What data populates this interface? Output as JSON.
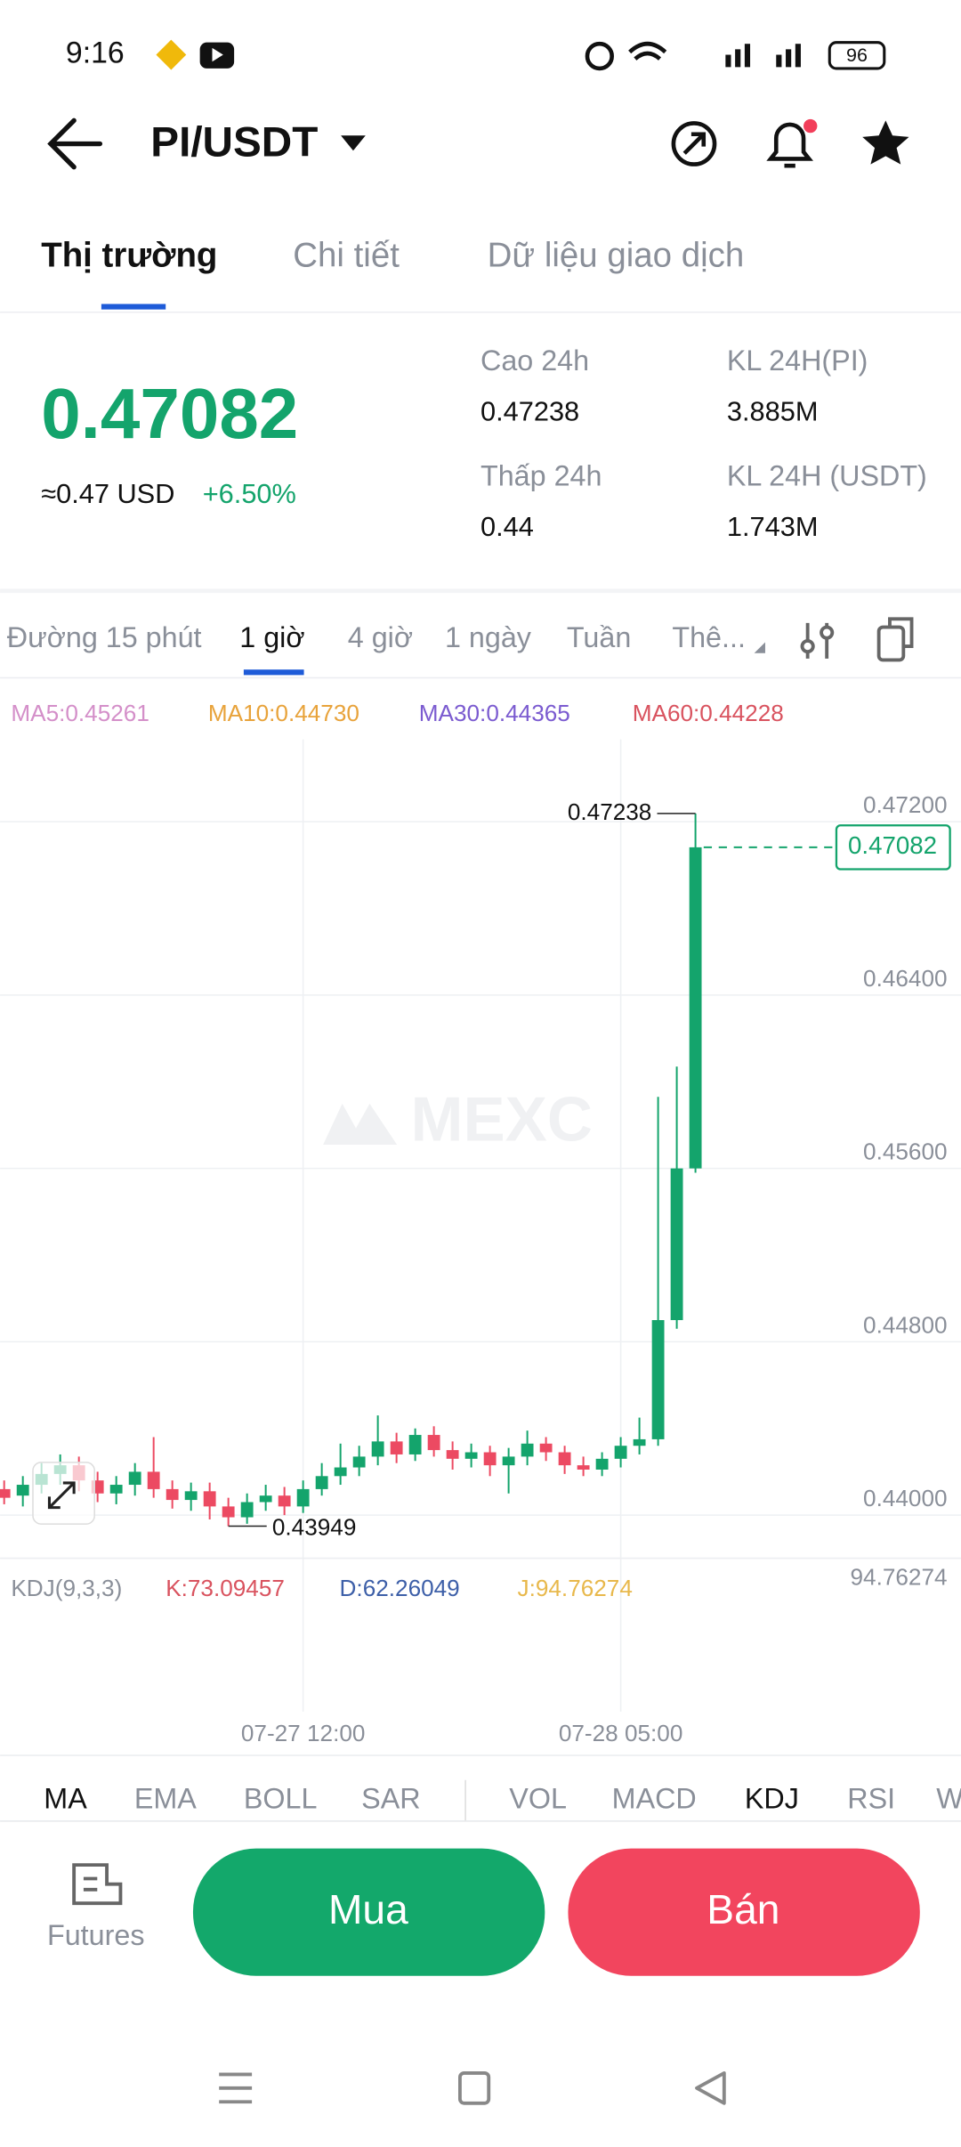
{
  "status_bar": {
    "time": "9:16",
    "battery": "96"
  },
  "header": {
    "pair": "PI/USDT"
  },
  "tabs": [
    "Thị trường",
    "Chi tiết",
    "Dữ liệu giao dịch"
  ],
  "ticker": {
    "price": "0.47082",
    "usd": "≈0.47 USD",
    "change": "+6.50%",
    "high_label": "Cao 24h",
    "high": "0.47238",
    "low_label": "Thấp 24h",
    "low": "0.44",
    "vol_pi_label": "KL 24H(PI)",
    "vol_pi": "3.885M",
    "vol_usdt_label": "KL 24H (USDT)",
    "vol_usdt": "1.743M"
  },
  "intervals": [
    "Đường 15 phút",
    "1 giờ",
    "4 giờ",
    "1 ngày",
    "Tuần",
    "Thê..."
  ],
  "ma_legend": [
    "MA5:0.45261",
    "MA10:0.44730",
    "MA30:0.44365",
    "MA60:0.44228"
  ],
  "chart_data": {
    "type": "candlestick",
    "watermark": "MEXC",
    "categories": [
      null,
      null,
      null,
      null,
      null,
      null,
      null,
      null,
      null,
      null,
      null,
      null,
      null,
      null,
      null,
      null,
      "07-27 12:00",
      null,
      null,
      null,
      null,
      null,
      null,
      null,
      null,
      null,
      null,
      null,
      null,
      null,
      null,
      null,
      null,
      "07-28 05:00",
      null,
      null,
      null,
      null
    ],
    "open": [
      0.4412,
      0.4409,
      0.4414,
      0.4419,
      0.4423,
      0.4416,
      0.441,
      0.4414,
      0.442,
      0.4412,
      0.4407,
      0.4411,
      0.4404,
      0.4399,
      0.4406,
      0.4409,
      0.4404,
      0.4412,
      0.4418,
      0.4422,
      0.4427,
      0.4434,
      0.4428,
      0.4437,
      0.443,
      0.4426,
      0.4429,
      0.4423,
      0.4427,
      0.4433,
      0.4429,
      0.4423,
      0.4421,
      0.4426,
      0.4432,
      0.4435,
      0.449,
      0.456
    ],
    "high": [
      0.4416,
      0.4418,
      0.4424,
      0.4428,
      0.4427,
      0.442,
      0.4418,
      0.4424,
      0.4436,
      0.4416,
      0.4415,
      0.4415,
      0.4408,
      0.441,
      0.4414,
      0.4413,
      0.4416,
      0.4424,
      0.4433,
      0.4432,
      0.4446,
      0.4438,
      0.444,
      0.4441,
      0.4434,
      0.4433,
      0.4432,
      0.4431,
      0.4439,
      0.4436,
      0.4432,
      0.4427,
      0.4429,
      0.4436,
      0.4445,
      0.4593,
      0.4607,
      0.47238
    ],
    "low": [
      0.4405,
      0.4404,
      0.441,
      0.4414,
      0.4411,
      0.4406,
      0.4405,
      0.4409,
      0.4408,
      0.4403,
      0.4402,
      0.4398,
      0.43949,
      0.4396,
      0.4402,
      0.44,
      0.4401,
      0.4409,
      0.4414,
      0.4418,
      0.4423,
      0.4424,
      0.4425,
      0.4427,
      0.4421,
      0.4422,
      0.4418,
      0.441,
      0.4423,
      0.4425,
      0.4419,
      0.4418,
      0.4418,
      0.4422,
      0.4428,
      0.4432,
      0.4486,
      0.4558
    ],
    "close": [
      0.4408,
      0.4414,
      0.4419,
      0.4423,
      0.4416,
      0.441,
      0.4414,
      0.442,
      0.4412,
      0.4407,
      0.4411,
      0.4404,
      0.4399,
      0.4406,
      0.4409,
      0.4404,
      0.4412,
      0.4418,
      0.4422,
      0.4427,
      0.4434,
      0.4428,
      0.4437,
      0.443,
      0.4426,
      0.4429,
      0.4423,
      0.4427,
      0.4433,
      0.4429,
      0.4423,
      0.4421,
      0.4426,
      0.4432,
      0.4435,
      0.449,
      0.456,
      0.47082
    ],
    "ylim": [
      0.4382,
      0.4758
    ],
    "yticks": [
      {
        "value": 0.44,
        "label": "0.44000"
      },
      {
        "value": 0.448,
        "label": "0.44800"
      },
      {
        "value": 0.456,
        "label": "0.45600"
      },
      {
        "value": 0.464,
        "label": "0.46400"
      },
      {
        "value": 0.472,
        "label": "0.47200"
      }
    ],
    "up_color": "#14a46c",
    "down_color": "#ec4a62",
    "grid": true
  },
  "kdj_legend": [
    "KDJ(9,3,3)",
    "K:73.09457",
    "D:62.26049",
    "J:94.76274"
  ],
  "kdj_max": "94.76274",
  "indicator_tabs": [
    "MA",
    "EMA",
    "BOLL",
    "SAR",
    "VOL",
    "MACD",
    "KDJ",
    "RSI",
    "W"
  ],
  "bottom": {
    "futures": "Futures",
    "buy": "Mua",
    "sell": "Bán"
  }
}
